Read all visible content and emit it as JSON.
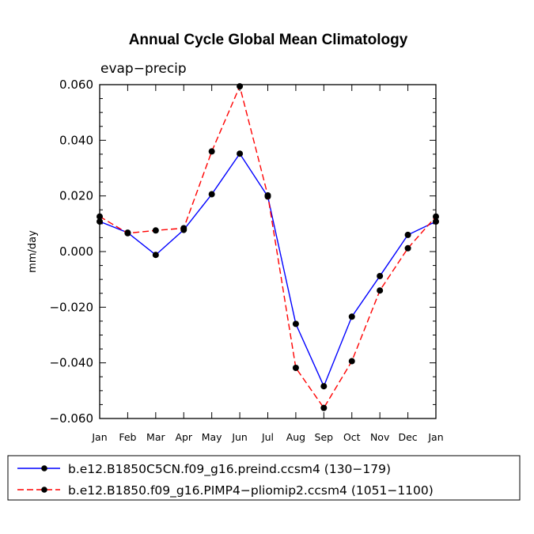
{
  "chart_data": {
    "type": "line",
    "title": "Annual Cycle Global Mean Climatology",
    "subtitle": "evap−precip",
    "xlabel": "",
    "ylabel": "mm/day",
    "categories": [
      "Jan",
      "Feb",
      "Mar",
      "Apr",
      "May",
      "Jun",
      "Jul",
      "Aug",
      "Sep",
      "Oct",
      "Nov",
      "Dec",
      "Jan"
    ],
    "ylim": [
      -0.06,
      0.06
    ],
    "yticks": [
      0.06,
      0.04,
      0.02,
      0.0,
      -0.02,
      -0.04,
      -0.06
    ],
    "ytick_labels": [
      "0.060",
      "0.040",
      "0.020",
      "0.000",
      "−0.020",
      "−0.040",
      "−0.060"
    ],
    "series": [
      {
        "name": "b.e12.B1850C5CN.f09_g16.preind.ccsm4 (130−179)",
        "color": "#0000ff",
        "style": "solid",
        "values": [
          0.0108,
          0.0068,
          -0.0012,
          0.0078,
          0.0206,
          0.0352,
          0.0198,
          -0.026,
          -0.0484,
          -0.0234,
          -0.0088,
          0.006,
          0.0108
        ]
      },
      {
        "name": "b.e12.B1850.f09_g16.PIMP4−pliomip2.ccsm4 (1051−1100)",
        "color": "#ff0000",
        "style": "dashed",
        "values": [
          0.0126,
          0.0066,
          0.0076,
          0.0084,
          0.036,
          0.0594,
          0.0202,
          -0.0418,
          -0.0562,
          -0.0394,
          -0.014,
          0.0012,
          0.0126
        ]
      }
    ]
  }
}
